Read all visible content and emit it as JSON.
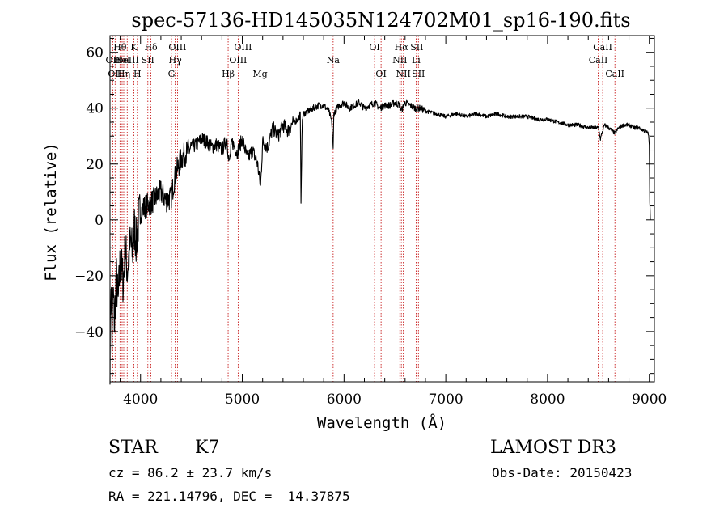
{
  "chart_data": {
    "type": "line",
    "title": "spec-57136-HD145035N124702M01_sp16-190.fits",
    "xlabel": "Wavelength (Å)",
    "ylabel": "Flux (relative)",
    "xlim": [
      3700,
      9050
    ],
    "ylim": [
      -58,
      66
    ],
    "x_ticks": [
      4000,
      5000,
      6000,
      7000,
      8000,
      9000
    ],
    "y_ticks": [
      -40,
      -20,
      0,
      20,
      40,
      60
    ],
    "grid": false,
    "line_color": "#000000",
    "marker_color": "#c00000",
    "series": [
      {
        "x": [
          3700,
          3710,
          3720,
          3730,
          3745,
          3760,
          3780,
          3800,
          3830,
          3850,
          3870,
          3900,
          3920,
          3940,
          3960,
          3980,
          4000,
          4050,
          4100,
          4150,
          4200,
          4250,
          4300,
          4330,
          4360,
          4400,
          4450,
          4500,
          4550,
          4600,
          4650,
          4700,
          4750,
          4800,
          4850,
          4870,
          4900,
          4950,
          5000,
          5050,
          5100,
          5150,
          5180,
          5200,
          5250,
          5300,
          5350,
          5400,
          5450,
          5500,
          5550,
          5570,
          5577,
          5590,
          5600,
          5650,
          5700,
          5750,
          5800,
          5850,
          5880,
          5893,
          5900,
          5930,
          5950,
          6000,
          6050,
          6100,
          6150,
          6200,
          6250,
          6300,
          6350,
          6400,
          6450,
          6500,
          6550,
          6563,
          6600,
          6650,
          6700,
          6750,
          6800,
          6900,
          7000,
          7100,
          7200,
          7300,
          7400,
          7500,
          7600,
          7700,
          7800,
          7900,
          8000,
          8100,
          8200,
          8300,
          8400,
          8500,
          8520,
          8542,
          8560,
          8600,
          8662,
          8700,
          8750,
          8800,
          8850,
          8900,
          8950,
          8990,
          9000,
          9005,
          9010
        ],
        "y": [
          -50,
          -20,
          -45,
          -25,
          -38,
          -20,
          -30,
          -15,
          -22,
          -10,
          -18,
          -8,
          -12,
          -3,
          -8,
          0,
          3,
          5,
          6,
          8,
          10,
          7,
          8,
          14,
          18,
          22,
          24,
          26,
          27,
          29,
          28,
          26,
          27,
          25,
          29,
          20,
          28,
          24,
          29,
          22,
          25,
          20,
          12,
          28,
          26,
          33,
          30,
          34,
          32,
          35,
          36,
          38,
          7,
          36,
          38,
          39,
          40,
          41,
          41,
          39,
          35,
          25,
          38,
          40,
          41,
          42,
          40,
          41,
          42,
          40,
          41,
          42,
          40,
          41,
          41,
          42,
          41,
          39,
          42,
          41,
          40,
          40,
          39,
          38,
          37,
          38,
          37,
          38,
          37,
          38,
          37,
          37,
          37,
          36,
          36,
          35,
          34,
          34,
          33,
          33,
          29,
          32,
          34,
          33,
          31,
          33,
          34,
          34,
          33,
          33,
          32,
          31,
          27,
          6,
          0
        ]
      }
    ],
    "line_markers": [
      {
        "wl": 3727,
        "label": "OII",
        "row": 1
      },
      {
        "wl": 3750,
        "label": "OII",
        "row": 2
      },
      {
        "wl": 3798,
        "label": "Hθ",
        "row": 0
      },
      {
        "wl": 3819,
        "label": "HeI",
        "row": 1
      },
      {
        "wl": 3835,
        "label": "Hη",
        "row": 2
      },
      {
        "wl": 3869,
        "label": "NeIII",
        "row": 1
      },
      {
        "wl": 3934,
        "label": "K",
        "row": 0
      },
      {
        "wl": 3969,
        "label": "H",
        "row": 2
      },
      {
        "wl": 4072,
        "label": "SII",
        "row": 1
      },
      {
        "wl": 4102,
        "label": "Hδ",
        "row": 0
      },
      {
        "wl": 4304,
        "label": "G",
        "row": 2
      },
      {
        "wl": 4341,
        "label": "Hγ",
        "row": 1
      },
      {
        "wl": 4363,
        "label": "OIII",
        "row": 0
      },
      {
        "wl": 4861,
        "label": "Hβ",
        "row": 2
      },
      {
        "wl": 4959,
        "label": "OIII",
        "row": 1
      },
      {
        "wl": 5007,
        "label": "OIII",
        "row": 0
      },
      {
        "wl": 5175,
        "label": "Mg",
        "row": 2
      },
      {
        "wl": 5893,
        "label": "Na",
        "row": 1
      },
      {
        "wl": 6300,
        "label": "OI",
        "row": 0
      },
      {
        "wl": 6364,
        "label": "OI",
        "row": 2
      },
      {
        "wl": 6548,
        "label": "NII",
        "row": 1
      },
      {
        "wl": 6563,
        "label": "Hα",
        "row": 0
      },
      {
        "wl": 6583,
        "label": "NII",
        "row": 2
      },
      {
        "wl": 6708,
        "label": "Li",
        "row": 1
      },
      {
        "wl": 6716,
        "label": "SII",
        "row": 0
      },
      {
        "wl": 6731,
        "label": "SII",
        "row": 2
      },
      {
        "wl": 8498,
        "label": "CaII",
        "row": 1
      },
      {
        "wl": 8542,
        "label": "CaII",
        "row": 0
      },
      {
        "wl": 8662,
        "label": "CaII",
        "row": 2
      }
    ]
  },
  "info": {
    "object_class": "STAR",
    "subclass": "K7",
    "survey": "LAMOST DR3",
    "cz": "cz = 86.2 ± 23.7 km/s",
    "obs_date": "Obs-Date: 20150423",
    "coords": "RA = 221.14796, DEC =  14.37875"
  }
}
